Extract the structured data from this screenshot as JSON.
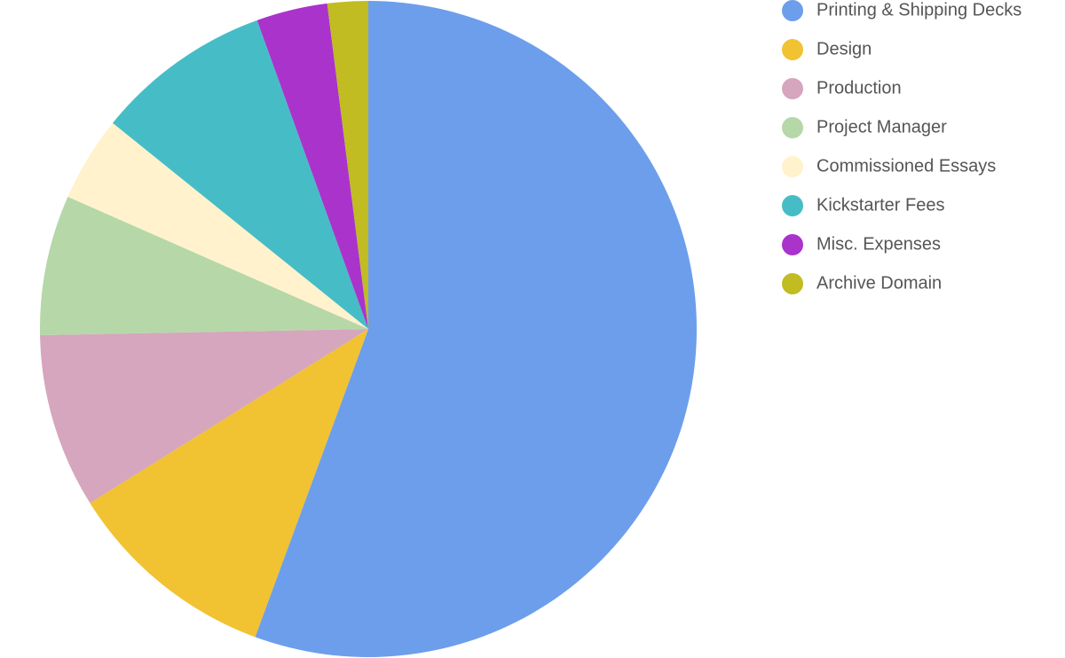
{
  "chart_data": {
    "type": "pie",
    "categories": [
      "Printing & Shipping Decks",
      "Design",
      "Production",
      "Project Manager",
      "Commissioned Essays",
      "Kickstarter Fees",
      "Misc. Expenses",
      "Archive Domain"
    ],
    "values": [
      55.6,
      10.5,
      8.6,
      6.9,
      4.2,
      8.7,
      3.5,
      2.0
    ],
    "colors": [
      "#6d9eeb",
      "#f1c232",
      "#d5a6bd",
      "#b6d7a8",
      "#fff2cc",
      "#46bdc6",
      "#aa33cc",
      "#c0bc22"
    ],
    "legend": "right"
  }
}
